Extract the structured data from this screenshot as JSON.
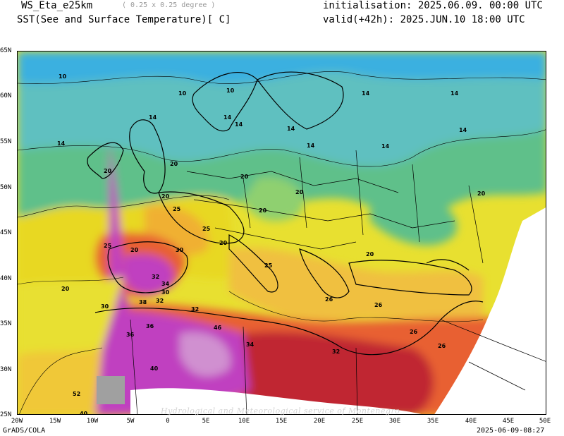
{
  "header": {
    "model": "WS_Eta_e25km",
    "resolution": "( 0.25 x 0.25 degree )",
    "field": "SST(See and Surface Temperature)[ C]",
    "init": "initialisation: 2025.06.09. 00:00 UTC",
    "valid": "valid(+42h): 2025.JUN.10 18:00 UTC"
  },
  "axes": {
    "lat_labels": [
      "65N",
      "60N",
      "55N",
      "50N",
      "45N",
      "40N",
      "35N",
      "30N",
      "25N"
    ],
    "lon_labels": [
      "20W",
      "15W",
      "10W",
      "5W",
      "0",
      "5E",
      "10E",
      "15E",
      "20E",
      "25E",
      "30E",
      "35E",
      "40E",
      "45E",
      "50E"
    ]
  },
  "contour_labels": [
    "10",
    "10",
    "10",
    "14",
    "14",
    "14",
    "14",
    "14",
    "14",
    "14",
    "14",
    "14",
    "14",
    "20",
    "20",
    "20",
    "20",
    "20",
    "20",
    "20",
    "20",
    "20",
    "20",
    "20",
    "25",
    "25",
    "25",
    "25",
    "26",
    "26",
    "26",
    "26",
    "30",
    "30",
    "30",
    "32",
    "32",
    "32",
    "32",
    "34",
    "34",
    "36",
    "36",
    "38",
    "40",
    "40",
    "46",
    "52"
  ],
  "footer": {
    "left": "GrADS/COLA",
    "right": "2025-06-09-08:27",
    "watermark": "Hydrological and Meteorological service of Montenegro"
  },
  "colors": {
    "cold": "#3bb0e0",
    "cool": "#5fc08a",
    "mild": "#e8e030",
    "warm": "#f0b030",
    "hot": "#e86030",
    "very_hot": "#c02830",
    "extreme": "#c040c0"
  }
}
